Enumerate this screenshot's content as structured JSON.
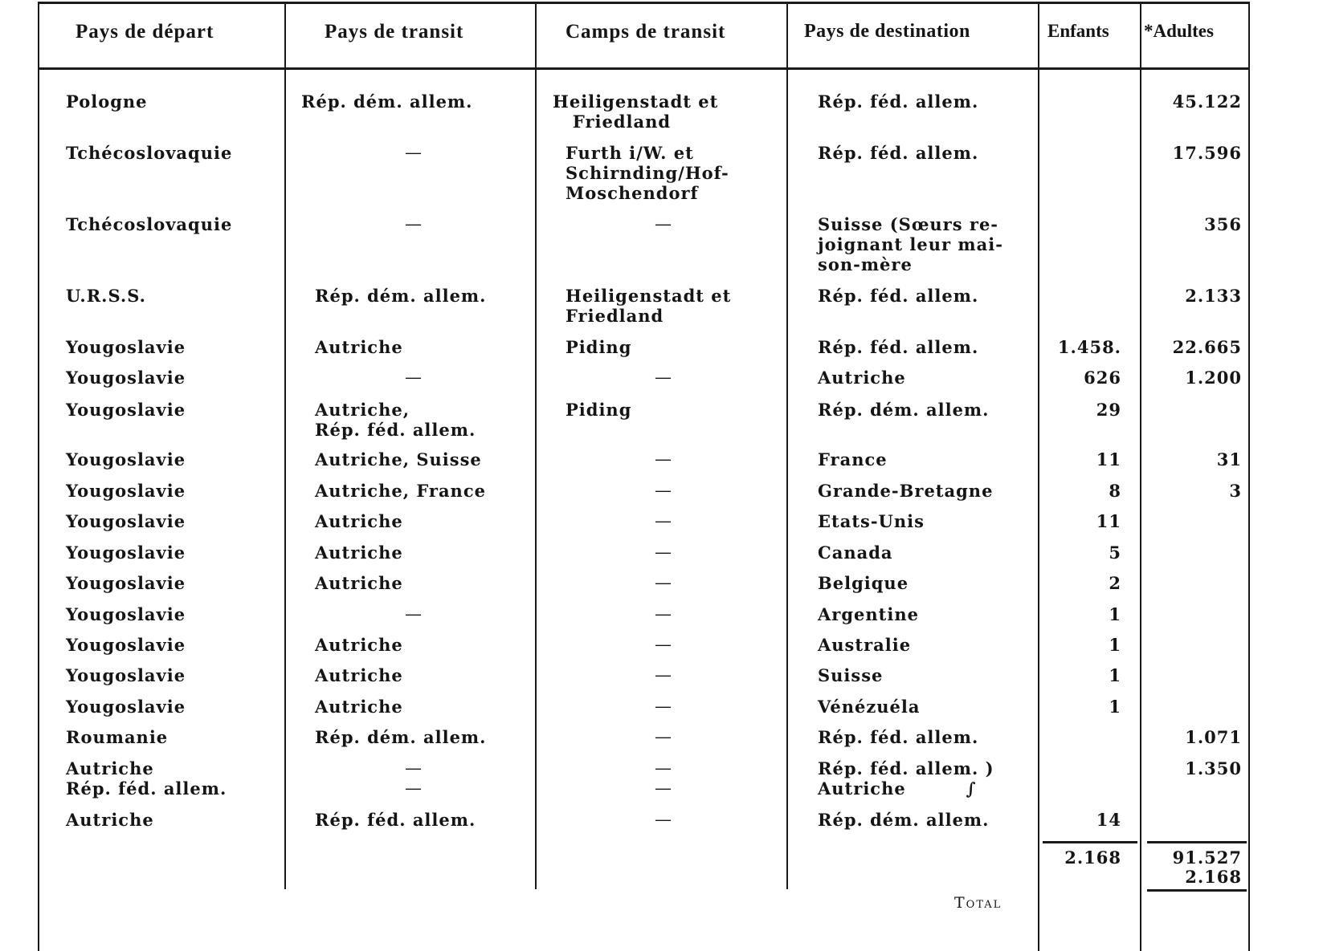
{
  "headers": [
    "Pays de départ",
    "Pays de transit",
    "Camps de transit",
    "Pays de destination",
    "Enfants",
    "*Adultes"
  ],
  "rows": [
    {
      "depart": "Pologne",
      "transit": "Rép. dém. allem.",
      "camps": "Heiligenstadt et\n   Friedland",
      "destination": "Rép. féd. allem.",
      "enfants": "",
      "adultes": "45.122"
    },
    {
      "depart": "Tchécoslovaquie",
      "transit": "—",
      "camps": "Furth i/W. et\nSchirnding/Hof-\nMoschendorf",
      "destination": "Rép. féd. allem.",
      "enfants": "",
      "adultes": "17.596"
    },
    {
      "depart": "Tchécoslovaquie",
      "transit": "—",
      "camps": "—",
      "destination": "Suisse (Sœurs re-\njoignant leur mai-\nson-mère",
      "enfants": "",
      "adultes": "356"
    },
    {
      "depart": "U.R.S.S.",
      "transit": "Rép. dém. allem.",
      "camps": "Heiligenstadt et\nFriedland",
      "destination": "Rép. féd. allem.",
      "enfants": "",
      "adultes": "2.133"
    },
    {
      "depart": "Yougoslavie",
      "transit": "Autriche",
      "camps": "Piding",
      "destination": "Rép. féd. allem.",
      "enfants": "1.458.",
      "adultes": "22.665"
    },
    {
      "depart": "Yougoslavie",
      "transit": "—",
      "camps": "—",
      "destination": "Autriche",
      "enfants": "626",
      "adultes": "1.200"
    },
    {
      "depart": "Yougoslavie",
      "transit": "Autriche,\nRép. féd. allem.",
      "camps": "Piding",
      "destination": "Rép. dém. allem.",
      "enfants": "29",
      "adultes": ""
    },
    {
      "depart": "Yougoslavie",
      "transit": "Autriche, Suisse",
      "camps": "—",
      "destination": "France",
      "enfants": "11",
      "adultes": "31"
    },
    {
      "depart": "Yougoslavie",
      "transit": "Autriche, France",
      "camps": "—",
      "destination": "Grande-Bretagne",
      "enfants": "8",
      "adultes": "3"
    },
    {
      "depart": "Yougoslavie",
      "transit": "Autriche",
      "camps": "—",
      "destination": "Etats-Unis",
      "enfants": "11",
      "adultes": ""
    },
    {
      "depart": "Yougoslavie",
      "transit": "Autriche",
      "camps": "—",
      "destination": "Canada",
      "enfants": "5",
      "adultes": ""
    },
    {
      "depart": "Yougoslavie",
      "transit": "Autriche",
      "camps": "—",
      "destination": "Belgique",
      "enfants": "2",
      "adultes": ""
    },
    {
      "depart": "Yougoslavie",
      "transit": "—",
      "camps": "—",
      "destination": "Argentine",
      "enfants": "1",
      "adultes": ""
    },
    {
      "depart": "Yougoslavie",
      "transit": "Autriche",
      "camps": "—",
      "destination": "Australie",
      "enfants": "1",
      "adultes": ""
    },
    {
      "depart": "Yougoslavie",
      "transit": "Autriche",
      "camps": "—",
      "destination": "Suisse",
      "enfants": "1",
      "adultes": ""
    },
    {
      "depart": "Yougoslavie",
      "transit": "Autriche",
      "camps": "—",
      "destination": "Vénézuéla",
      "enfants": "1",
      "adultes": ""
    },
    {
      "depart": "Roumanie",
      "transit": "Rép. dém. allem.",
      "camps": "—",
      "destination": "Rép. féd. allem.",
      "enfants": "",
      "adultes": "1.071"
    },
    {
      "depart": "Autriche\nRép. féd. allem.",
      "transit": "—\n—",
      "camps": "—\n—",
      "destination": "Rép. féd. allem. )\nAutriche         ∫",
      "enfants": "",
      "adultes": "1.350"
    },
    {
      "depart": "Autriche",
      "transit": "Rép. féd. allem.",
      "camps": "—",
      "destination": "Rép. dém. allem.",
      "enfants": "14",
      "adultes": ""
    }
  ],
  "subtotals": {
    "enfants": "2.168",
    "adultes": "91.527",
    "adultes_added": "2.168"
  },
  "total_label": "Total"
}
